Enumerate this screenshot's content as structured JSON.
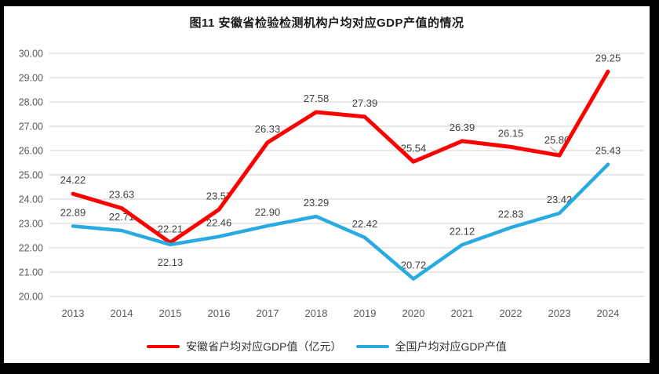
{
  "chart_data": {
    "type": "line",
    "title": "图11 安徽省检验检测机构户均对应GDP产值的情况",
    "x": [
      "2013",
      "2014",
      "2015",
      "2016",
      "2017",
      "2018",
      "2019",
      "2020",
      "2021",
      "2022",
      "2023",
      "2024"
    ],
    "series": [
      {
        "name": "安徽省户均对应GDP值（亿元）",
        "color": "#FF0000",
        "values": [
          24.22,
          23.63,
          22.21,
          23.57,
          26.33,
          27.58,
          27.39,
          25.54,
          26.39,
          26.15,
          25.8,
          29.25
        ]
      },
      {
        "name": "全国户均对应GDP产值",
        "color": "#29ABE2",
        "values": [
          22.89,
          22.71,
          22.13,
          22.46,
          22.9,
          23.29,
          22.42,
          20.72,
          22.12,
          22.83,
          23.42,
          25.43
        ]
      }
    ],
    "ylim": [
      20,
      30
    ],
    "ytick_step": 1,
    "ytick_labels": [
      "20.00",
      "21.00",
      "22.00",
      "23.00",
      "24.00",
      "25.00",
      "26.00",
      "27.00",
      "28.00",
      "29.00",
      "30.00"
    ],
    "xlabel": "",
    "ylabel": "",
    "grid": true,
    "data_labels": true,
    "legend_position": "bottom",
    "label_overrides": [
      {
        "series": 1,
        "index": 2,
        "position": "below"
      },
      {
        "series": 0,
        "index": 10,
        "position": "callout-left"
      }
    ],
    "colors": {
      "gridline": "#D9D9D9",
      "axis_text": "#595959",
      "data_label_text": "#404040",
      "leader_line": "#A6A6A6"
    }
  }
}
